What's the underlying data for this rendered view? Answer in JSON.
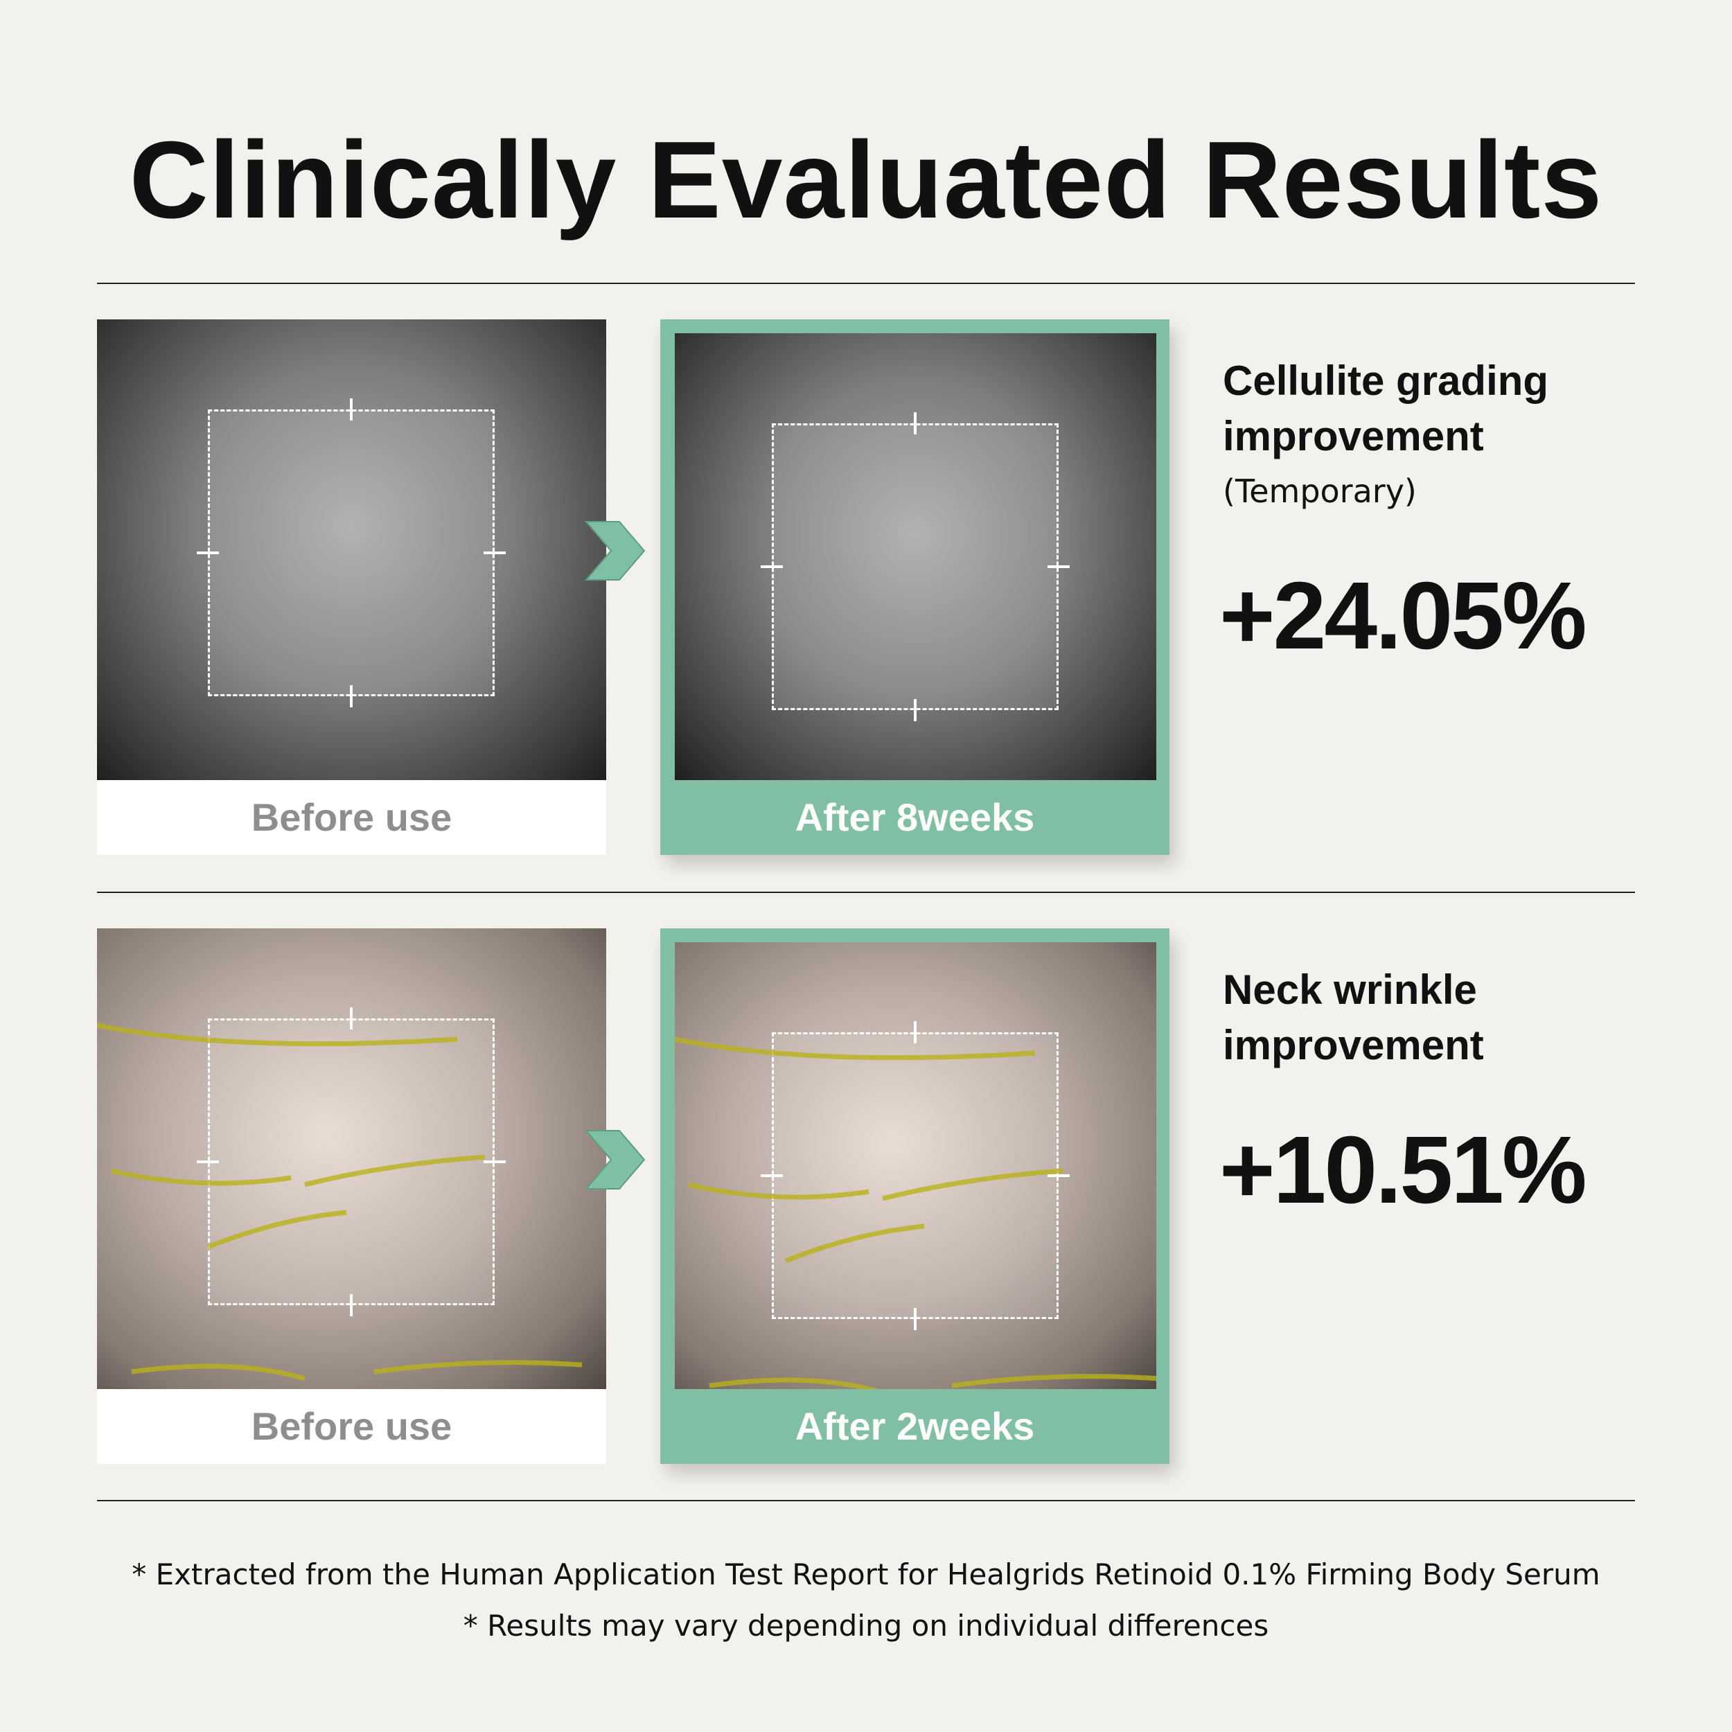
{
  "header": {
    "title": "Clinically Evaluated Results"
  },
  "rows": [
    {
      "before_label": "Before use",
      "after_label": "After 8weeks",
      "metric": "Cellulite grading improvement",
      "note": "(Temporary)",
      "result": "+24.05%"
    },
    {
      "before_label": "Before use",
      "after_label": "After 2weeks",
      "metric": "Neck wrinkle improvement",
      "result": "+10.51%"
    }
  ],
  "footnotes": [
    "* Extracted from the Human Application Test Report for Healgrids Retinoid 0.1% Firming Body Serum",
    "* Results may vary depending on individual differences"
  ]
}
